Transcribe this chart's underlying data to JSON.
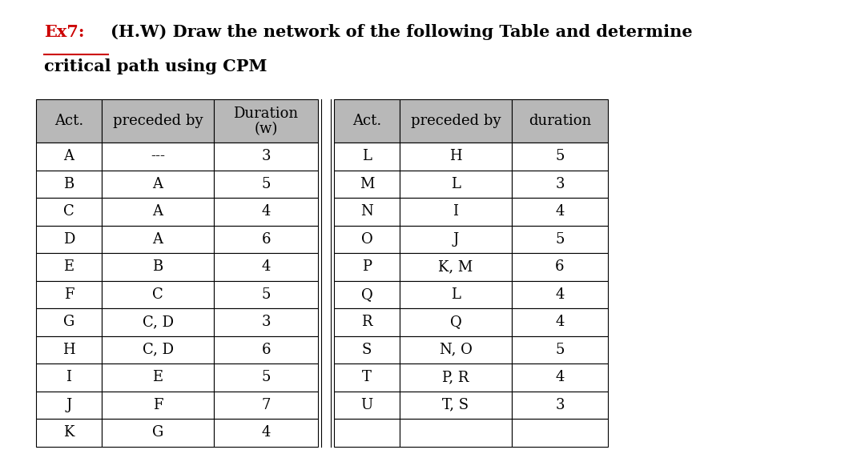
{
  "title_ex": "Ex7:",
  "title_rest1": "(H.W) Draw the network of the following Table and determine",
  "title_rest2": "critical path using CPM",
  "left_table": [
    [
      "A",
      "---",
      "3"
    ],
    [
      "B",
      "A",
      "5"
    ],
    [
      "C",
      "A",
      "4"
    ],
    [
      "D",
      "A",
      "6"
    ],
    [
      "E",
      "B",
      "4"
    ],
    [
      "F",
      "C",
      "5"
    ],
    [
      "G",
      "C, D",
      "3"
    ],
    [
      "H",
      "C, D",
      "6"
    ],
    [
      "I",
      "E",
      "5"
    ],
    [
      "J",
      "F",
      "7"
    ],
    [
      "K",
      "G",
      "4"
    ]
  ],
  "right_table": [
    [
      "L",
      "H",
      "5"
    ],
    [
      "M",
      "L",
      "3"
    ],
    [
      "N",
      "I",
      "4"
    ],
    [
      "O",
      "J",
      "5"
    ],
    [
      "P",
      "K, M",
      "6"
    ],
    [
      "Q",
      "L",
      "4"
    ],
    [
      "R",
      "Q",
      "4"
    ],
    [
      "S",
      "N, O",
      "5"
    ],
    [
      "T",
      "P, R",
      "4"
    ],
    [
      "U",
      "T, S",
      "3"
    ],
    [
      "",
      "",
      ""
    ]
  ],
  "bg_color": "#ffffff",
  "header_bg": "#b8b8b8",
  "cell_bg": "#ffffff",
  "grid_color": "#000000",
  "text_color": "#000000",
  "title_color_ex": "#cc0000",
  "font_size": 13,
  "header_font_size": 13
}
